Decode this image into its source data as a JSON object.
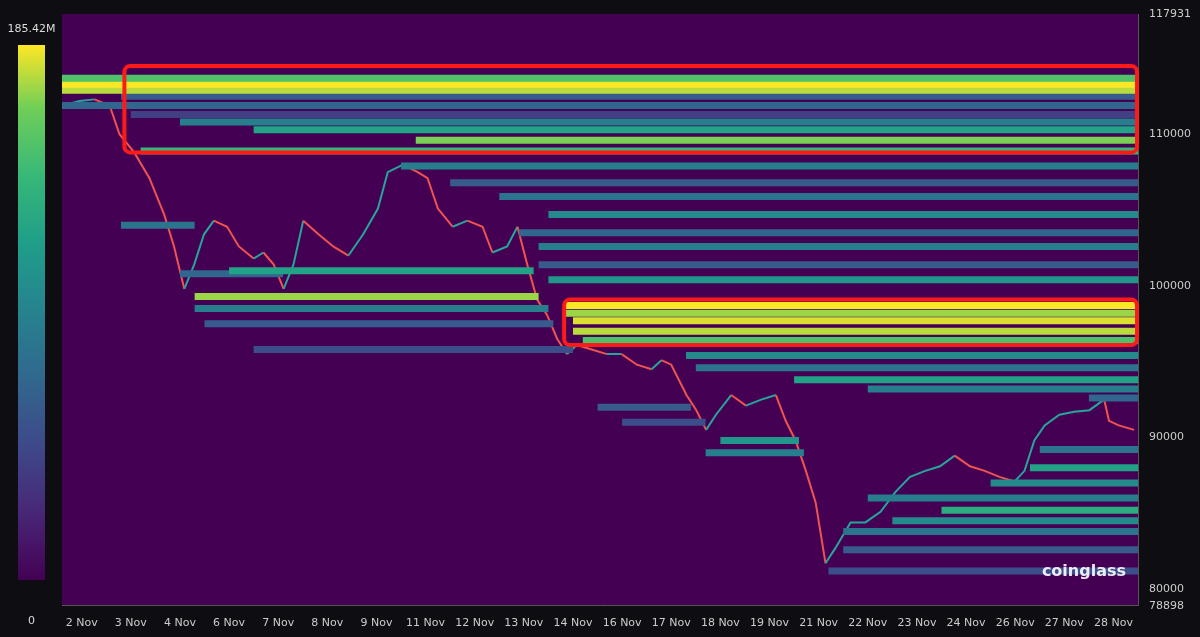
{
  "chart_data": {
    "type": "heatmap",
    "categories": [
      "2 Nov",
      "3 Nov",
      "4 Nov",
      "6 Nov",
      "7 Nov",
      "8 Nov",
      "9 Nov",
      "11 Nov",
      "12 Nov",
      "13 Nov",
      "14 Nov",
      "16 Nov",
      "17 Nov",
      "18 Nov",
      "19 Nov",
      "21 Nov",
      "22 Nov",
      "23 Nov",
      "24 Nov",
      "26 Nov",
      "27 Nov",
      "28 Nov"
    ],
    "xlim": [
      -0.4,
      21.5
    ],
    "ylim": [
      78898,
      117931
    ],
    "yticks": [
      78898,
      80000,
      90000,
      100000,
      110000,
      117931
    ],
    "grid": false,
    "colorbar": {
      "range": [
        0,
        185.42
      ],
      "ticks": [
        {
          "value": 0,
          "label": "0"
        },
        {
          "value": 185.42,
          "label": "185.42M"
        }
      ]
    },
    "cells": [
      {
        "y": 113700,
        "x": [
          -0.4,
          21.5
        ],
        "value": 150
      },
      {
        "y": 113300,
        "x": [
          -0.4,
          21.5
        ],
        "value": 185
      },
      {
        "y": 112900,
        "x": [
          -0.4,
          21.5
        ],
        "value": 175
      },
      {
        "y": 112500,
        "x": [
          0.8,
          21.5
        ],
        "value": 60
      },
      {
        "y": 111900,
        "x": [
          -0.4,
          21.5
        ],
        "value": 70
      },
      {
        "y": 111300,
        "x": [
          1.0,
          21.5
        ],
        "value": 40
      },
      {
        "y": 110800,
        "x": [
          2.0,
          21.5
        ],
        "value": 90
      },
      {
        "y": 110300,
        "x": [
          3.5,
          21.5
        ],
        "value": 120
      },
      {
        "y": 109600,
        "x": [
          6.8,
          21.5
        ],
        "value": 165
      },
      {
        "y": 108900,
        "x": [
          1.2,
          21.5
        ],
        "value": 140
      },
      {
        "y": 107900,
        "x": [
          6.5,
          21.5
        ],
        "value": 90
      },
      {
        "y": 106800,
        "x": [
          7.5,
          21.5
        ],
        "value": 60
      },
      {
        "y": 105900,
        "x": [
          8.5,
          21.5
        ],
        "value": 80
      },
      {
        "y": 104700,
        "x": [
          9.5,
          21.5
        ],
        "value": 100
      },
      {
        "y": 103500,
        "x": [
          8.9,
          21.5
        ],
        "value": 70
      },
      {
        "y": 102600,
        "x": [
          9.3,
          21.5
        ],
        "value": 90
      },
      {
        "y": 101400,
        "x": [
          9.3,
          21.5
        ],
        "value": 60
      },
      {
        "y": 100400,
        "x": [
          9.5,
          21.5
        ],
        "value": 110
      },
      {
        "y": 101000,
        "x": [
          3.0,
          9.2
        ],
        "value": 120
      },
      {
        "y": 99300,
        "x": [
          2.3,
          9.3
        ],
        "value": 170
      },
      {
        "y": 104000,
        "x": [
          0.8,
          2.3
        ],
        "value": 80
      },
      {
        "y": 100800,
        "x": [
          2.0,
          4.1
        ],
        "value": 70
      },
      {
        "y": 98500,
        "x": [
          2.3,
          9.5
        ],
        "value": 90
      },
      {
        "y": 97500,
        "x": [
          2.5,
          9.6
        ],
        "value": 60
      },
      {
        "y": 95800,
        "x": [
          3.5,
          10.0
        ],
        "value": 50
      },
      {
        "y": 98700,
        "x": [
          9.8,
          21.5
        ],
        "value": 185
      },
      {
        "y": 98200,
        "x": [
          9.8,
          21.5
        ],
        "value": 170
      },
      {
        "y": 97700,
        "x": [
          10.0,
          21.5
        ],
        "value": 180
      },
      {
        "y": 97000,
        "x": [
          10.0,
          21.5
        ],
        "value": 175
      },
      {
        "y": 96400,
        "x": [
          10.2,
          21.5
        ],
        "value": 150
      },
      {
        "y": 95400,
        "x": [
          12.3,
          21.5
        ],
        "value": 100
      },
      {
        "y": 94600,
        "x": [
          12.5,
          21.5
        ],
        "value": 80
      },
      {
        "y": 93800,
        "x": [
          14.5,
          21.5
        ],
        "value": 120
      },
      {
        "y": 93200,
        "x": [
          16.0,
          21.5
        ],
        "value": 90
      },
      {
        "y": 92600,
        "x": [
          20.5,
          21.5
        ],
        "value": 70
      },
      {
        "y": 92000,
        "x": [
          10.5,
          12.4
        ],
        "value": 60
      },
      {
        "y": 91000,
        "x": [
          11.0,
          12.7
        ],
        "value": 50
      },
      {
        "y": 89800,
        "x": [
          13.0,
          14.6
        ],
        "value": 110
      },
      {
        "y": 89000,
        "x": [
          12.7,
          14.7
        ],
        "value": 90
      },
      {
        "y": 89200,
        "x": [
          19.5,
          21.5
        ],
        "value": 80
      },
      {
        "y": 88000,
        "x": [
          19.3,
          21.5
        ],
        "value": 120
      },
      {
        "y": 87000,
        "x": [
          18.5,
          21.5
        ],
        "value": 100
      },
      {
        "y": 86000,
        "x": [
          16.0,
          21.5
        ],
        "value": 90
      },
      {
        "y": 85200,
        "x": [
          17.5,
          21.5
        ],
        "value": 130
      },
      {
        "y": 84500,
        "x": [
          16.5,
          21.5
        ],
        "value": 100
      },
      {
        "y": 83800,
        "x": [
          15.5,
          21.5
        ],
        "value": 80
      },
      {
        "y": 82600,
        "x": [
          15.5,
          21.5
        ],
        "value": 60
      },
      {
        "y": 81200,
        "x": [
          15.2,
          21.5
        ],
        "value": 50
      }
    ],
    "price": {
      "x": [
        -0.4,
        -0.04,
        0.26,
        0.57,
        0.77,
        1.07,
        1.38,
        1.68,
        1.88,
        2.09,
        2.29,
        2.49,
        2.69,
        2.96,
        3.2,
        3.5,
        3.7,
        3.91,
        4.11,
        4.31,
        4.51,
        4.82,
        5.12,
        5.43,
        5.73,
        6.03,
        6.23,
        6.54,
        6.84,
        7.04,
        7.25,
        7.55,
        7.85,
        8.16,
        8.36,
        8.66,
        8.87,
        9.07,
        9.27,
        9.47,
        9.68,
        9.88,
        10.08,
        10.38,
        10.69,
        10.99,
        11.3,
        11.6,
        11.8,
        12.0,
        12.31,
        12.51,
        12.71,
        12.91,
        13.22,
        13.52,
        13.83,
        14.13,
        14.33,
        14.53,
        14.74,
        14.94,
        15.14,
        15.34,
        15.65,
        15.95,
        16.26,
        16.56,
        16.86,
        17.17,
        17.47,
        17.77,
        18.08,
        18.38,
        18.68,
        18.99,
        19.19,
        19.39,
        19.6,
        19.9,
        20.2,
        20.51,
        20.81,
        20.91,
        21.11,
        21.42
      ],
      "values": [
        111900,
        112200,
        112300,
        111900,
        110000,
        108800,
        107100,
        104700,
        102600,
        99800,
        101400,
        103400,
        104300,
        103900,
        102600,
        101800,
        102200,
        101400,
        99800,
        101400,
        104300,
        103400,
        102600,
        102000,
        103400,
        105100,
        107500,
        108000,
        107500,
        107100,
        105100,
        103900,
        104300,
        103900,
        102200,
        102600,
        103900,
        101400,
        99100,
        98100,
        96500,
        95500,
        96100,
        95800,
        95500,
        95500,
        94800,
        94500,
        95100,
        94800,
        92800,
        91800,
        90500,
        91500,
        92800,
        92100,
        92500,
        92800,
        91100,
        89800,
        87800,
        85700,
        81700,
        82700,
        84400,
        84400,
        85100,
        86400,
        87400,
        87800,
        88100,
        88800,
        88100,
        87800,
        87400,
        87100,
        87800,
        89800,
        90800,
        91500,
        91700,
        91800,
        92500,
        91100,
        90800,
        90500
      ]
    },
    "annotations": [
      {
        "type": "box",
        "x": [
          0.87,
          21.48
        ],
        "y": [
          108800,
          114500
        ],
        "color": "#ff1a1a"
      },
      {
        "type": "box",
        "x": [
          9.82,
          21.48
        ],
        "y": [
          96100,
          99100
        ],
        "color": "#ff1a1a"
      }
    ],
    "watermark": "coinglass"
  }
}
